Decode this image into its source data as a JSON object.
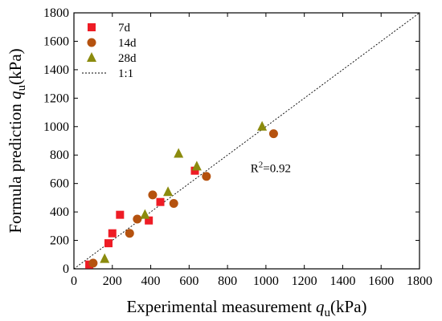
{
  "chart_data": {
    "type": "scatter",
    "title": "",
    "xlabel": {
      "main": "Experimental measurement ",
      "var": "q",
      "sub": "u",
      "unit": "(kPa)"
    },
    "ylabel": {
      "main": "Formula prediction ",
      "var": "q",
      "sub": "u",
      "unit": "(kPa)"
    },
    "xlim": [
      0,
      1800
    ],
    "ylim": [
      0,
      1800
    ],
    "xticks": [
      0,
      200,
      400,
      600,
      800,
      1000,
      1200,
      1400,
      1600,
      1800
    ],
    "yticks": [
      0,
      200,
      400,
      600,
      800,
      1000,
      1200,
      1400,
      1600,
      1800
    ],
    "grid": false,
    "legend_position": "top-left",
    "series": [
      {
        "name": "7d",
        "marker": "square",
        "color": "#ee1c25",
        "points": [
          [
            80,
            30
          ],
          [
            180,
            180
          ],
          [
            200,
            250
          ],
          [
            240,
            380
          ],
          [
            390,
            340
          ],
          [
            450,
            470
          ],
          [
            630,
            690
          ]
        ]
      },
      {
        "name": "14d",
        "marker": "circle",
        "color": "#b5520f",
        "points": [
          [
            100,
            40
          ],
          [
            290,
            250
          ],
          [
            330,
            350
          ],
          [
            410,
            520
          ],
          [
            520,
            460
          ],
          [
            690,
            650
          ],
          [
            1040,
            950
          ]
        ]
      },
      {
        "name": "28d",
        "marker": "triangle",
        "color": "#8b8b0e",
        "points": [
          [
            160,
            70
          ],
          [
            370,
            380
          ],
          [
            490,
            540
          ],
          [
            545,
            810
          ],
          [
            640,
            720
          ],
          [
            980,
            1000
          ]
        ]
      }
    ],
    "reference_line": {
      "name": "1:1",
      "from": [
        0,
        0
      ],
      "to": [
        1800,
        1800
      ],
      "style": "dotted"
    },
    "annotation": {
      "text_main": "R",
      "text_sup": "2",
      "text_rest": "=0.92",
      "x": 920,
      "y": 680
    }
  }
}
